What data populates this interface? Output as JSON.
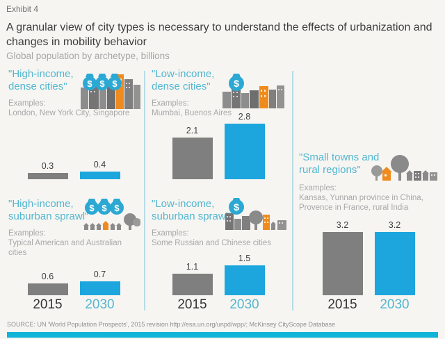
{
  "header": {
    "exhibit": "Exhibit 4",
    "title": "A granular view of city types is necessary to understand the effects of urbanization and changes in mobility behavior",
    "subtitle": "Global population by archetype, billions"
  },
  "years": {
    "y2015": "2015",
    "y2030": "2030"
  },
  "icons": {
    "dollar": "$"
  },
  "colors": {
    "bar_2015": "#7f7f7f",
    "bar_2030": "#1ca6dd",
    "panel_title": "#53b7d0",
    "accent_orange": "#ef8b1e",
    "icon_gray": "#8a8a8a",
    "divider": "#b7dce6",
    "bottom_bar": "#10b4d8",
    "background": "#f6f5f2"
  },
  "panels": [
    {
      "name": "high-income-dense-cities",
      "title_line1": "\"High-income,",
      "title_line2": "dense cities\"",
      "examples_label": "Examples:",
      "examples": "London, New York City, Singapore",
      "icon": "money-bags-3-dense-city-icon",
      "values": {
        "v2015": "0.3",
        "v2030": "0.4"
      }
    },
    {
      "name": "low-income-dense-cities",
      "title_line1": "\"Low-income,",
      "title_line2": "dense cities\"",
      "examples_label": "Examples:",
      "examples": "Mumbai, Buenos Aires",
      "icon": "money-bag-1-dense-city-icon",
      "values": {
        "v2015": "2.1",
        "v2030": "2.8"
      }
    },
    {
      "name": "high-income-suburban-sprawl",
      "title_line1": "\"High-income,",
      "title_line2": "suburban sprawl\"",
      "examples_label": "Examples:",
      "examples": "Typical American and Australian cities",
      "icon": "money-bags-3-suburbs-icon",
      "values": {
        "v2015": "0.6",
        "v2030": "0.7"
      }
    },
    {
      "name": "low-income-suburban-sprawl",
      "title_line1": "\"Low-income,",
      "title_line2": "suburban sprawl\"",
      "examples_label": "Examples:",
      "examples": "Some Russian and Chinese cities",
      "icon": "money-bag-1-suburbs-icon",
      "values": {
        "v2015": "1.1",
        "v2030": "1.5"
      }
    },
    {
      "name": "small-towns-rural-regions",
      "title_line1": "\"Small towns and",
      "title_line2": "rural regions\"",
      "examples_label": "Examples:",
      "examples": "Kansas, Yunnan province in China, Provence in France, rural India",
      "icon": "towns-trees-houses-icon",
      "values": {
        "v2015": "3.2",
        "v2030": "3.2"
      }
    }
  ],
  "footer": {
    "source": "SOURCE: UN 'World Population Prospects', 2015 revision http://esa.un.org/unpd/wpp/; McKinsey CityScope Database"
  },
  "chart_data": {
    "type": "bar",
    "title": "A granular view of city types is necessary to understand the effects of urbanization and changes in mobility behavior",
    "subtitle": "Global population by archetype, billions",
    "categories": [
      "2015",
      "2030"
    ],
    "series": [
      {
        "name": "\"High-income, dense cities\"",
        "values": [
          0.3,
          0.4
        ]
      },
      {
        "name": "\"Low-income, dense cities\"",
        "values": [
          2.1,
          2.8
        ]
      },
      {
        "name": "\"High-income, suburban sprawl\"",
        "values": [
          0.6,
          0.7
        ]
      },
      {
        "name": "\"Low-income, suburban sprawl\"",
        "values": [
          1.1,
          1.5
        ]
      },
      {
        "name": "\"Small towns and rural regions\"",
        "values": [
          3.2,
          3.2
        ]
      }
    ],
    "bar_colors": {
      "2015": "#7f7f7f",
      "2030": "#1ca6dd"
    },
    "value_labels_shown": true,
    "legend_position": "none",
    "grid": false,
    "ylim": [
      0,
      3.5
    ]
  }
}
